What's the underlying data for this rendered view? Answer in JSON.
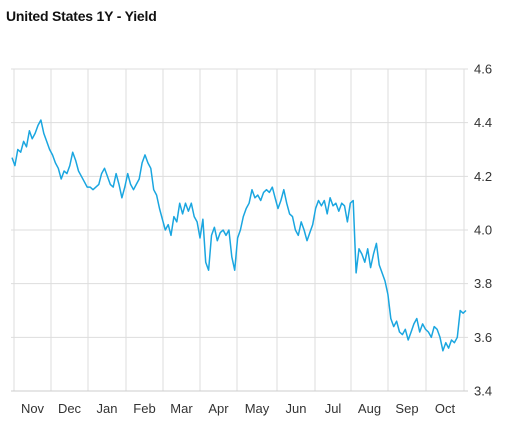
{
  "title": "United States 1Y - Yield",
  "colors": {
    "line": "#1aa6e0",
    "grid": "#dddddd",
    "axis_text": "#333333"
  },
  "chart_data": {
    "type": "line",
    "title": "United States 1Y - Yield",
    "xlabel": "",
    "ylabel": "",
    "x_ticks": [
      "Nov",
      "Dec",
      "Jan",
      "Feb",
      "Mar",
      "Apr",
      "May",
      "Jun",
      "Jul",
      "Aug",
      "Sep",
      "Oct"
    ],
    "y_ticks": [
      3.4,
      3.6,
      3.8,
      4.0,
      4.2,
      4.4,
      4.6
    ],
    "ylim": [
      3.4,
      4.6
    ],
    "y_axis_side": "right",
    "grid": true,
    "series": [
      {
        "values": [
          4.27,
          4.24,
          4.3,
          4.29,
          4.33,
          4.31,
          4.37,
          4.34,
          4.36,
          4.39,
          4.41,
          4.36,
          4.33,
          4.3,
          4.28,
          4.25,
          4.23,
          4.19,
          4.22,
          4.21,
          4.24,
          4.29,
          4.26,
          4.22,
          4.2,
          4.18,
          4.16,
          4.16,
          4.15,
          4.16,
          4.17,
          4.21,
          4.23,
          4.2,
          4.17,
          4.16,
          4.21,
          4.17,
          4.12,
          4.16,
          4.21,
          4.17,
          4.15,
          4.17,
          4.19,
          4.25,
          4.28,
          4.25,
          4.23,
          4.15,
          4.13,
          4.08,
          4.04,
          4.0,
          4.02,
          3.98,
          4.05,
          4.03,
          4.1,
          4.06,
          4.1,
          4.07,
          4.1,
          4.05,
          4.03,
          3.97,
          4.04,
          3.88,
          3.85,
          3.98,
          4.01,
          3.96,
          3.99,
          4.0,
          3.98,
          4.0,
          3.9,
          3.85,
          3.97,
          4.0,
          4.05,
          4.08,
          4.1,
          4.15,
          4.12,
          4.13,
          4.11,
          4.14,
          4.15,
          4.14,
          4.16,
          4.12,
          4.08,
          4.11,
          4.15,
          4.1,
          4.06,
          4.05,
          4.0,
          3.98,
          4.03,
          4.0,
          3.96,
          3.99,
          4.02,
          4.08,
          4.11,
          4.09,
          4.11,
          4.06,
          4.12,
          4.09,
          4.1,
          4.07,
          4.1,
          4.09,
          4.03,
          4.1,
          4.11,
          3.84,
          3.93,
          3.91,
          3.88,
          3.93,
          3.86,
          3.91,
          3.95,
          3.87,
          3.84,
          3.81,
          3.76,
          3.67,
          3.64,
          3.66,
          3.62,
          3.61,
          3.63,
          3.59,
          3.62,
          3.65,
          3.67,
          3.62,
          3.65,
          3.63,
          3.62,
          3.6,
          3.64,
          3.63,
          3.6,
          3.55,
          3.58,
          3.56,
          3.59,
          3.58,
          3.6,
          3.7,
          3.69,
          3.7
        ]
      }
    ]
  }
}
